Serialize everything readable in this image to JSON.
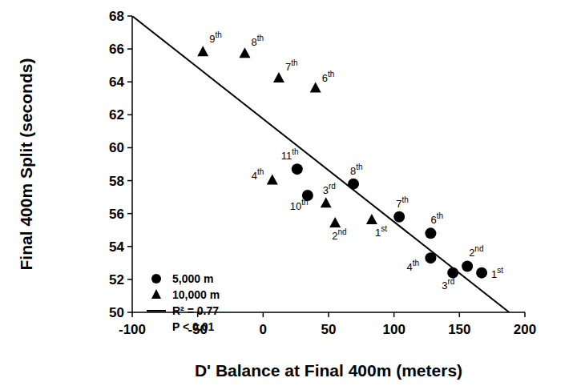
{
  "chart_data": {
    "type": "scatter",
    "x_label": "D' Balance at Final 400m (meters)",
    "y_label": "Final 400m Split (seconds)",
    "xlim": [
      -100,
      200
    ],
    "xticks": [
      -100,
      -50,
      0,
      50,
      100,
      150,
      200
    ],
    "ylim": [
      50,
      68
    ],
    "yticks": [
      50,
      52,
      54,
      56,
      58,
      60,
      62,
      64,
      66,
      68
    ],
    "legend": "lower left",
    "series": [
      {
        "name": "5,000 m",
        "type": "scatter",
        "marker": "circle",
        "color": "#000000",
        "x": [
          26,
          34,
          69,
          104,
          128,
          128,
          145,
          156,
          167
        ],
        "values": [
          58.7,
          57.1,
          57.8,
          55.8,
          54.8,
          53.3,
          52.4,
          52.8,
          52.4
        ],
        "labels": [
          "11th",
          "10th",
          "8th",
          "7th",
          "6th",
          "4th",
          "3rd",
          "2nd",
          "1st"
        ]
      },
      {
        "name": "10,000 m",
        "type": "scatter",
        "marker": "triangle",
        "color": "#000000",
        "x": [
          -46,
          -14,
          12,
          40,
          7,
          48,
          55,
          83
        ],
        "values": [
          65.8,
          65.7,
          64.2,
          63.6,
          58.0,
          56.6,
          55.4,
          55.6
        ],
        "labels": [
          "9th",
          "8th",
          "7th",
          "6th",
          "4th",
          "3rd",
          "2nd",
          "1st"
        ]
      },
      {
        "name": "R² = 0.77",
        "type": "line",
        "line_style": "solid",
        "color": "#000000",
        "x": [
          -100,
          188
        ],
        "values": [
          68,
          50
        ]
      }
    ],
    "annotations": [
      "P < 0.01"
    ]
  }
}
